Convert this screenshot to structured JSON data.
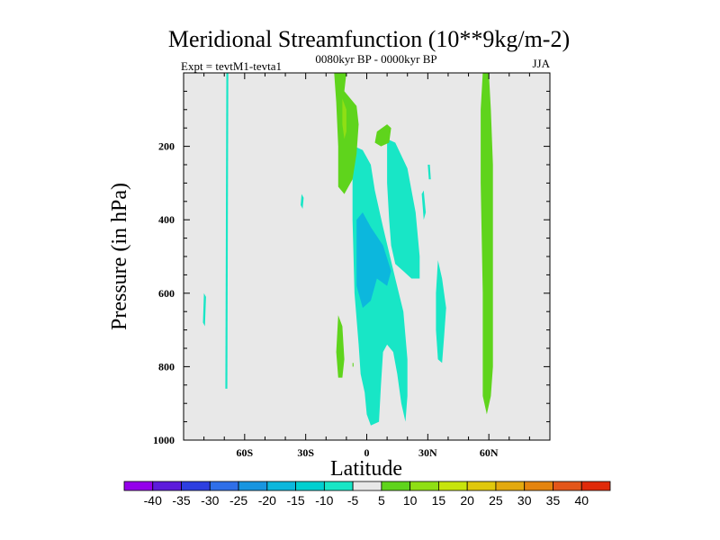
{
  "chart_data": {
    "type": "contour",
    "title": "Meridional Streamfunction (10**9kg/m-2)",
    "subtitle_left": "Expt = tevtM1-tevta1",
    "subtitle_center": "0080kyr BP - 0000kyr BP",
    "subtitle_right": "JJA",
    "xlabel": "Latitude",
    "ylabel": "Pressure (in hPa)",
    "xlim": [
      -90,
      90
    ],
    "ylim": [
      0,
      1000
    ],
    "x_ticks": [
      {
        "value": -60,
        "label": "60S"
      },
      {
        "value": -30,
        "label": "30S"
      },
      {
        "value": 0,
        "label": "0"
      },
      {
        "value": 30,
        "label": "30N"
      },
      {
        "value": 60,
        "label": "60N"
      }
    ],
    "y_ticks": [
      {
        "value": 200,
        "label": "200"
      },
      {
        "value": 400,
        "label": "400"
      },
      {
        "value": 600,
        "label": "600"
      },
      {
        "value": 800,
        "label": "800"
      },
      {
        "value": 1000,
        "label": "1000"
      }
    ],
    "background_color": "#e8e8e8",
    "colorbar": {
      "labels": [
        "-40",
        "-35",
        "-30",
        "-25",
        "-20",
        "-15",
        "-10",
        "-5",
        "5",
        "10",
        "15",
        "20",
        "25",
        "30",
        "35",
        "40"
      ],
      "colors": [
        "#9400ea",
        "#5d1bdb",
        "#2d3fe0",
        "#2f6fe8",
        "#1895e0",
        "#0cb7dd",
        "#00cfd0",
        "#18e6c6",
        "#e8e8e8",
        "#5fd41c",
        "#8fdf14",
        "#c7e40c",
        "#e0c80c",
        "#e3a90e",
        "#e4840e",
        "#e3561a",
        "#e02a0a"
      ]
    },
    "regions": [
      {
        "value": -7.5,
        "color": "#18e6c6",
        "points": [
          [
            -69,
            0
          ],
          [
            -68,
            0
          ],
          [
            -68.5,
            860
          ],
          [
            -69.5,
            860
          ]
        ]
      },
      {
        "value": -7.5,
        "color": "#18e6c6",
        "points": [
          [
            -80,
            600
          ],
          [
            -79,
            610
          ],
          [
            -79.5,
            690
          ],
          [
            -80.5,
            680
          ]
        ]
      },
      {
        "value": -7.5,
        "color": "#18e6c6",
        "points": [
          [
            -32,
            330
          ],
          [
            -31,
            340
          ],
          [
            -31.5,
            370
          ],
          [
            -32.5,
            360
          ]
        ]
      },
      {
        "value": -7.5,
        "color": "#18e6c6",
        "points": [
          [
            -6,
            200
          ],
          [
            -2,
            210
          ],
          [
            2,
            250
          ],
          [
            4,
            320
          ],
          [
            8,
            420
          ],
          [
            14,
            560
          ],
          [
            18,
            650
          ],
          [
            20,
            780
          ],
          [
            20,
            880
          ],
          [
            19,
            950
          ],
          [
            17,
            900
          ],
          [
            15,
            820
          ],
          [
            13,
            760
          ],
          [
            10,
            740
          ],
          [
            8,
            760
          ],
          [
            7,
            850
          ],
          [
            6,
            950
          ],
          [
            2,
            960
          ],
          [
            0,
            930
          ],
          [
            -1,
            870
          ],
          [
            -3,
            820
          ],
          [
            -4,
            740
          ],
          [
            -6,
            600
          ],
          [
            -7,
            400
          ],
          [
            -7,
            280
          ]
        ]
      },
      {
        "value": -7.5,
        "color": "#18e6c6",
        "points": [
          [
            10,
            180
          ],
          [
            14,
            190
          ],
          [
            20,
            260
          ],
          [
            24,
            380
          ],
          [
            26,
            500
          ],
          [
            26,
            560
          ],
          [
            22,
            560
          ],
          [
            18,
            540
          ],
          [
            14,
            520
          ],
          [
            12,
            470
          ],
          [
            11,
            400
          ],
          [
            10,
            300
          ]
        ]
      },
      {
        "value": -12.5,
        "color": "#0cb7dd",
        "points": [
          [
            -5,
            400
          ],
          [
            -2,
            380
          ],
          [
            2,
            420
          ],
          [
            8,
            470
          ],
          [
            12,
            540
          ],
          [
            10,
            580
          ],
          [
            5,
            560
          ],
          [
            2,
            620
          ],
          [
            -2,
            640
          ],
          [
            -5,
            580
          ],
          [
            -5,
            480
          ]
        ]
      },
      {
        "value": -7.5,
        "color": "#18e6c6",
        "points": [
          [
            30,
            250
          ],
          [
            31,
            250
          ],
          [
            31.5,
            290
          ],
          [
            30.5,
            290
          ]
        ]
      },
      {
        "value": -7.5,
        "color": "#18e6c6",
        "points": [
          [
            27,
            330
          ],
          [
            28,
            320
          ],
          [
            29,
            380
          ],
          [
            28,
            400
          ]
        ]
      },
      {
        "value": -7.5,
        "color": "#18e6c6",
        "points": [
          [
            35,
            510
          ],
          [
            37,
            560
          ],
          [
            39,
            640
          ],
          [
            38,
            720
          ],
          [
            37,
            790
          ],
          [
            35,
            780
          ],
          [
            34,
            700
          ],
          [
            34,
            600
          ]
        ]
      },
      {
        "value": 7.5,
        "color": "#5fd41c",
        "points": [
          [
            -16,
            0
          ],
          [
            -10,
            0
          ],
          [
            -11,
            50
          ],
          [
            -5,
            90
          ],
          [
            -4,
            140
          ],
          [
            -5,
            220
          ],
          [
            -7,
            290
          ],
          [
            -11,
            330
          ],
          [
            -14,
            310
          ],
          [
            -14,
            200
          ],
          [
            -15,
            80
          ]
        ]
      },
      {
        "value": 12.5,
        "color": "#8fdf14",
        "points": [
          [
            -12,
            70
          ],
          [
            -10,
            100
          ],
          [
            -10,
            160
          ],
          [
            -11,
            180
          ],
          [
            -12,
            140
          ]
        ]
      },
      {
        "value": 7.5,
        "color": "#5fd41c",
        "points": [
          [
            5,
            160
          ],
          [
            10,
            140
          ],
          [
            12,
            150
          ],
          [
            11,
            190
          ],
          [
            7,
            200
          ],
          [
            4,
            190
          ]
        ]
      },
      {
        "value": 7.5,
        "color": "#5fd41c",
        "points": [
          [
            -14,
            660
          ],
          [
            -12,
            690
          ],
          [
            -11,
            780
          ],
          [
            -12,
            830
          ],
          [
            -14,
            830
          ],
          [
            -15,
            760
          ]
        ]
      },
      {
        "value": 7.5,
        "color": "#5fd41c",
        "points": [
          [
            57,
            0
          ],
          [
            60,
            0
          ],
          [
            61,
            100
          ],
          [
            62,
            250
          ],
          [
            62,
            550
          ],
          [
            62,
            800
          ],
          [
            61,
            880
          ],
          [
            59,
            930
          ],
          [
            57,
            880
          ],
          [
            57,
            600
          ],
          [
            56,
            300
          ],
          [
            56,
            100
          ]
        ]
      },
      {
        "value": 7.5,
        "color": "#5fd41c",
        "points": [
          [
            -7,
            790
          ],
          [
            -6.5,
            790
          ],
          [
            -6.5,
            800
          ],
          [
            -7,
            800
          ]
        ]
      }
    ]
  }
}
